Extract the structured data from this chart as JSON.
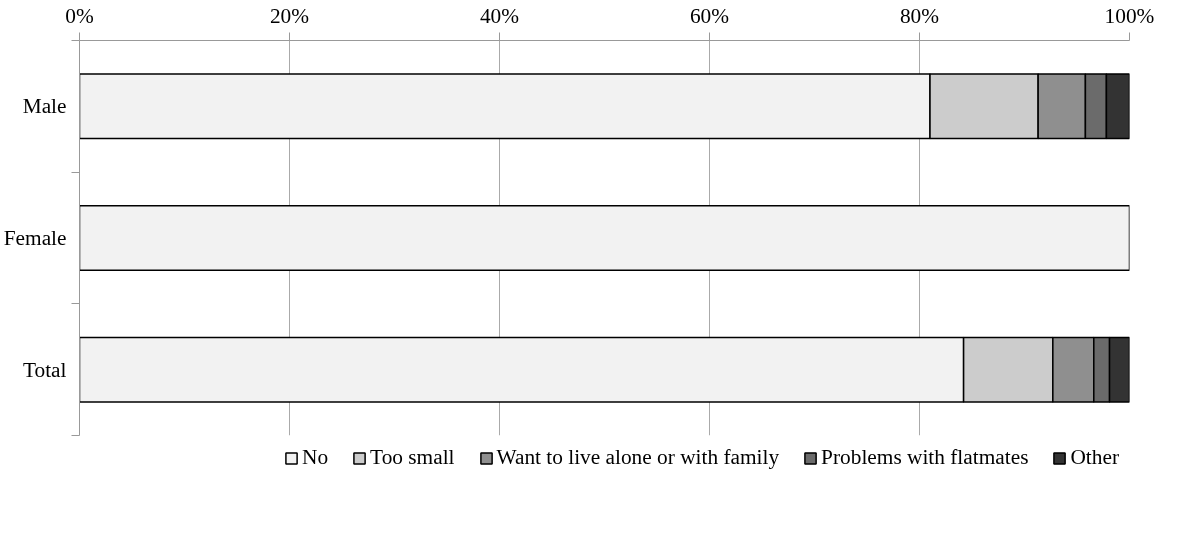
{
  "chart_data": {
    "type": "bar",
    "orientation": "horizontal",
    "stacked": true,
    "categories": [
      "Male",
      "Female",
      "Total"
    ],
    "series": [
      {
        "name": "No",
        "color": "#f2f2f2",
        "values": [
          81.0,
          100,
          84.2
        ]
      },
      {
        "name": "Too small",
        "color": "#cccccc",
        "values": [
          10.3,
          null,
          8.5
        ]
      },
      {
        "name": "Want to live alone or with family",
        "color": "#8f8f8f",
        "values": [
          4.5,
          null,
          3.9
        ]
      },
      {
        "name": "Problems with flatmates",
        "color": "#6b6b6b",
        "values": [
          2.0,
          null,
          1.5
        ]
      },
      {
        "name": "Other",
        "color": "#333333",
        "values": [
          2.2,
          null,
          1.9
        ]
      }
    ],
    "xlim": [
      0,
      100
    ],
    "xticks": [
      {
        "value": 0,
        "label": "0%"
      },
      {
        "value": 20,
        "label": "20%"
      },
      {
        "value": 40,
        "label": "40%"
      },
      {
        "value": 60,
        "label": "60%"
      },
      {
        "value": 80,
        "label": "80%"
      },
      {
        "value": 100,
        "label": "100%"
      }
    ],
    "grid": "x",
    "legend": "bottom"
  }
}
